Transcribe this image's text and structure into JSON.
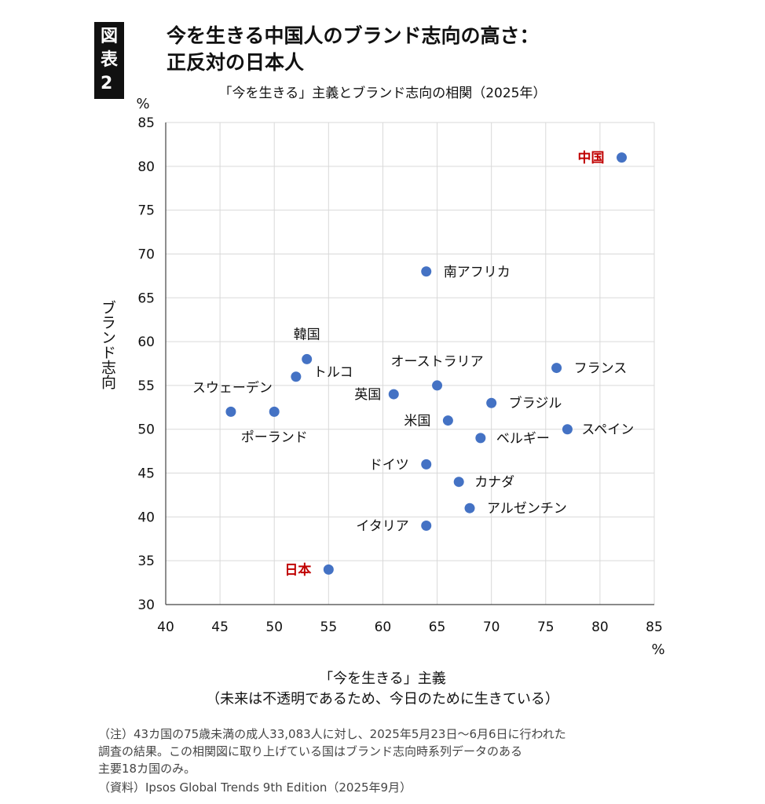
{
  "header": {
    "badge": "図表2",
    "title_line1": "今を生きる中国人のブランド志向の高さ：",
    "title_line2": "正反対の日本人"
  },
  "chart_data": {
    "type": "scatter",
    "title": "「今を生きる」主義とブランド志向の相関（2025年）",
    "xlabel_line1": "「今を生きる」主義",
    "xlabel_line2": "（未来は不透明であるため、今日のために生きている）",
    "ylabel": "ブランド志向",
    "x_unit": "%",
    "y_unit": "%",
    "xlim": [
      40,
      85
    ],
    "ylim": [
      30,
      85
    ],
    "xticks": [
      40,
      45,
      50,
      55,
      60,
      65,
      70,
      75,
      80,
      85
    ],
    "yticks": [
      30,
      35,
      40,
      45,
      50,
      55,
      60,
      65,
      70,
      75,
      80,
      85
    ],
    "grid": true,
    "marker_color": "#4472C4",
    "highlight_color": "#C00000",
    "points": [
      {
        "label": "中国",
        "x": 82,
        "y": 81,
        "highlight": true
      },
      {
        "label": "南アフリカ",
        "x": 64,
        "y": 68
      },
      {
        "label": "韓国",
        "x": 53,
        "y": 58
      },
      {
        "label": "フランス",
        "x": 76,
        "y": 57
      },
      {
        "label": "トルコ",
        "x": 52,
        "y": 56
      },
      {
        "label": "オーストラリア",
        "x": 65,
        "y": 55
      },
      {
        "label": "英国",
        "x": 61,
        "y": 54
      },
      {
        "label": "ブラジル",
        "x": 70,
        "y": 53
      },
      {
        "label": "スウェーデン",
        "x": 46,
        "y": 52
      },
      {
        "label": "ポーランド",
        "x": 50,
        "y": 52
      },
      {
        "label": "米国",
        "x": 66,
        "y": 51
      },
      {
        "label": "スペイン",
        "x": 77,
        "y": 50
      },
      {
        "label": "ベルギー",
        "x": 69,
        "y": 49
      },
      {
        "label": "ドイツ",
        "x": 64,
        "y": 46
      },
      {
        "label": "カナダ",
        "x": 67,
        "y": 44
      },
      {
        "label": "アルゼンチン",
        "x": 68,
        "y": 41
      },
      {
        "label": "イタリア",
        "x": 64,
        "y": 39
      },
      {
        "label": "日本",
        "x": 55,
        "y": 34,
        "highlight": true
      }
    ]
  },
  "notes": {
    "line1": "（注）43カ国の75歳未満の成人33,083人に対し、2025年5月23日～6月6日に行われた",
    "line2": "調査の結果。この相関図に取り上げている国はブランド志向時系列データのある",
    "line3": "主要18カ国のみ。",
    "source": "（資料）Ipsos Global Trends 9th Edition（2025年9月）"
  }
}
